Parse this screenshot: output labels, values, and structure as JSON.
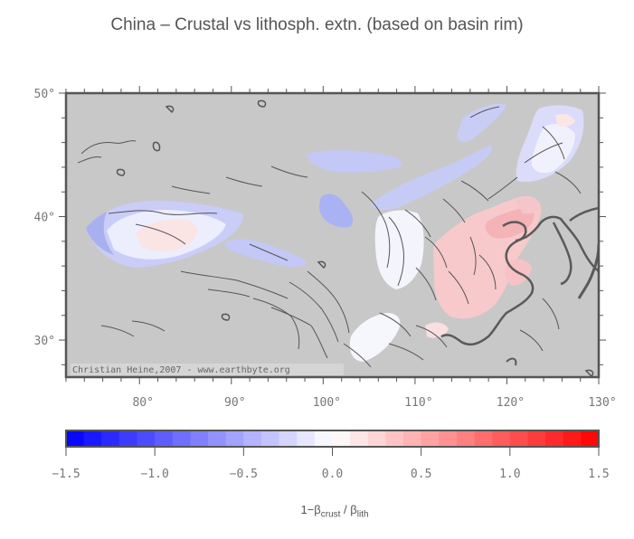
{
  "title": "China – Crustal vs lithosph. extn. (based on basin rim)",
  "map": {
    "lon_range": [
      72,
      130
    ],
    "lat_range": [
      27,
      50
    ],
    "lon_ticks": [
      80,
      90,
      100,
      110,
      120,
      130
    ],
    "lat_ticks": [
      30,
      40,
      50
    ],
    "background_color": "#c8c8c8",
    "credit": "Christian Heine,2007 - www.earthbyte.org",
    "regions": [
      {
        "name": "tarim-basin",
        "value": -0.2
      },
      {
        "name": "tarim-center",
        "value": 0.1
      },
      {
        "name": "junggar-north-strip",
        "value": -0.3
      },
      {
        "name": "qaidam-basin",
        "value": -0.3
      },
      {
        "name": "alashan-strip",
        "value": -0.25
      },
      {
        "name": "hexi-patch",
        "value": -0.4
      },
      {
        "name": "ordos-basin",
        "value": -0.05
      },
      {
        "name": "erlian-strip",
        "value": -0.25
      },
      {
        "name": "hailar-basin",
        "value": -0.2
      },
      {
        "name": "songliao-basin",
        "value": -0.05
      },
      {
        "name": "north-china-plain",
        "value": 0.3
      },
      {
        "name": "bohai-area",
        "value": 0.4
      },
      {
        "name": "sichuan-basin",
        "value": -0.05
      },
      {
        "name": "jianghan-basin",
        "value": 0.2
      }
    ]
  },
  "colorbar": {
    "min": -1.5,
    "max": 1.5,
    "tick_labels": [
      "−1.5",
      "−1.0",
      "−0.5",
      "0.0",
      "0.5",
      "1.0",
      "1.5"
    ],
    "steps": 30,
    "label_main": "1−β",
    "label_sub1": "crust",
    "label_mid": " / β",
    "label_sub2": "lith"
  }
}
